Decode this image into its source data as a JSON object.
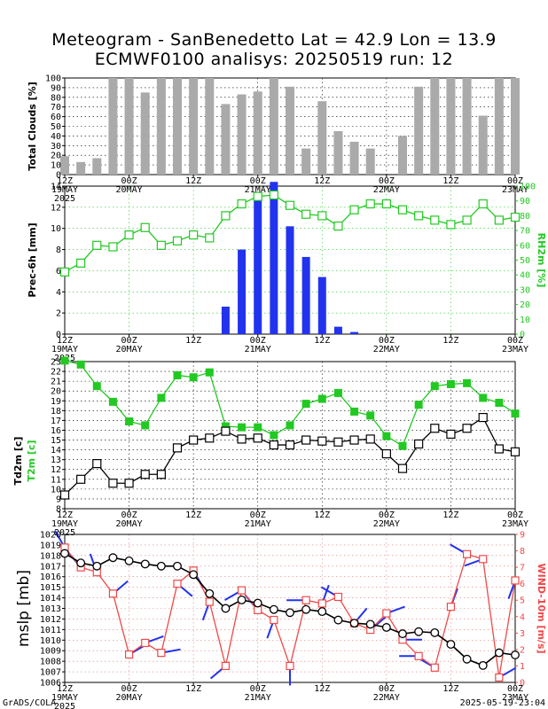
{
  "title": {
    "line1": "Meteogram - SanBenedetto Lat = 42.9 Lon = 13.9",
    "line2": "ECMWF0100 analisys: 20250519 run: 12"
  },
  "footer": {
    "left": "GrADS/COLA",
    "right": "2025-05-19-23:04"
  },
  "colors": {
    "green": "#22c922",
    "blue": "#2233ee",
    "red": "#f04848",
    "grey": "#aaaaaa",
    "black": "#000000"
  },
  "x_axis": {
    "ticks": [
      {
        "t": 0,
        "top": "12Z",
        "bottom": "19MAY",
        "extra": "2025"
      },
      {
        "t": 2,
        "top": "00Z",
        "bottom": "20MAY",
        "extra": ""
      },
      {
        "t": 4,
        "top": "12Z",
        "bottom": "",
        "extra": ""
      },
      {
        "t": 6,
        "top": "00Z",
        "bottom": "21MAY",
        "extra": ""
      },
      {
        "t": 8,
        "top": "12Z",
        "bottom": "",
        "extra": ""
      },
      {
        "t": 10,
        "top": "00Z",
        "bottom": "22MAY",
        "extra": ""
      },
      {
        "t": 12,
        "top": "12Z",
        "bottom": "",
        "extra": ""
      },
      {
        "t": 14,
        "top": "00Z",
        "bottom": "23MAY",
        "extra": ""
      }
    ]
  },
  "chart_data": [
    {
      "type": "bar",
      "ylabel": "Total Clouds [%]",
      "ylim": [
        0,
        100
      ],
      "yticks": [
        0,
        10,
        20,
        30,
        40,
        50,
        60,
        70,
        80,
        90,
        100
      ],
      "series": [
        {
          "name": "Total Clouds",
          "x": [
            0,
            0.5,
            1,
            1.5,
            2,
            2.5,
            3,
            3.5,
            4,
            4.5,
            5,
            5.5,
            6,
            6.5,
            7,
            7.5,
            8,
            8.5,
            9,
            9.5,
            10,
            10.5,
            11,
            11.5,
            12,
            12.5,
            13,
            13.5,
            14
          ],
          "values": [
            19,
            13,
            17,
            100,
            100,
            85,
            100,
            100,
            100,
            100,
            73,
            83,
            86,
            100,
            91,
            27,
            76,
            45,
            34,
            27,
            0,
            40,
            91,
            100,
            100,
            100,
            61,
            100,
            100
          ]
        }
      ]
    },
    {
      "type": "bar+line",
      "ylabel": "Prec-6h [mm]",
      "y2label": "RH2m [%]",
      "ylim": [
        0,
        14
      ],
      "y2lim": [
        0,
        100
      ],
      "yticks": [
        0,
        2,
        4,
        6,
        8,
        10,
        12,
        14
      ],
      "y2ticks": [
        0,
        10,
        20,
        30,
        40,
        50,
        60,
        70,
        80,
        90,
        100
      ],
      "series": [
        {
          "name": "Prec-6h",
          "x": [
            0,
            0.5,
            1,
            1.5,
            2,
            2.5,
            3,
            3.5,
            4,
            4.5,
            5,
            5.5,
            6,
            6.5,
            7,
            7.5,
            8,
            8.5,
            9,
            9.5,
            10,
            10.5,
            11,
            11.5,
            12,
            12.5,
            13,
            13.5,
            14
          ],
          "values": [
            0,
            0,
            0,
            0,
            0,
            0,
            0,
            0,
            0,
            0,
            2.6,
            8,
            13,
            14.4,
            10.2,
            7.3,
            5.4,
            0.7,
            0.2,
            0,
            0,
            0,
            0,
            0,
            0,
            0,
            0,
            0,
            0
          ]
        },
        {
          "name": "RH2m",
          "x": [
            0,
            0.5,
            1,
            1.5,
            2,
            2.5,
            3,
            3.5,
            4,
            4.5,
            5,
            5.5,
            6,
            6.5,
            7,
            7.5,
            8,
            8.5,
            9,
            9.5,
            10,
            10.5,
            11,
            11.5,
            12,
            12.5,
            13,
            13.5,
            14
          ],
          "values": [
            42,
            48,
            60,
            59,
            67,
            72,
            60,
            63,
            67,
            65,
            80,
            88,
            93,
            94,
            87,
            81,
            80,
            73,
            84,
            88,
            88,
            84,
            80,
            77,
            74,
            77,
            88,
            77,
            79
          ]
        }
      ]
    },
    {
      "type": "line",
      "ylabel": "Td2m [c]",
      "ylabel2": "T2m [c]",
      "ylim": [
        8,
        23
      ],
      "yticks": [
        8,
        9,
        10,
        11,
        12,
        13,
        14,
        15,
        16,
        17,
        18,
        19,
        20,
        21,
        22,
        23
      ],
      "series": [
        {
          "name": "T2m",
          "x": [
            0,
            0.5,
            1,
            1.5,
            2,
            2.5,
            3,
            3.5,
            4,
            4.5,
            5,
            5.5,
            6,
            6.5,
            7,
            7.5,
            8,
            8.5,
            9,
            9.5,
            10,
            10.5,
            11,
            11.5,
            12,
            12.5,
            13,
            13.5,
            14
          ],
          "values": [
            23.1,
            22.7,
            20.5,
            18.9,
            16.9,
            16.5,
            19.3,
            21.6,
            21.4,
            21.9,
            16.4,
            16.3,
            16.3,
            15.5,
            16.5,
            18.7,
            19.2,
            19.8,
            17.9,
            17.5,
            15.4,
            14.4,
            18.6,
            20.5,
            20.7,
            20.8,
            19.3,
            18.8,
            17.7
          ]
        },
        {
          "name": "Td2m",
          "x": [
            0,
            0.5,
            1,
            1.5,
            2,
            2.5,
            3,
            3.5,
            4,
            4.5,
            5,
            5.5,
            6,
            6.5,
            7,
            7.5,
            8,
            8.5,
            9,
            9.5,
            10,
            10.5,
            11,
            11.5,
            12,
            12.5,
            13,
            13.5,
            14
          ],
          "values": [
            9.4,
            11,
            12.6,
            10.6,
            10.6,
            11.5,
            11.5,
            14.2,
            15,
            15.2,
            15.9,
            15.1,
            15.2,
            14.5,
            14.5,
            15,
            14.9,
            14.8,
            15,
            15.1,
            13.6,
            12.1,
            14.6,
            16.2,
            15.6,
            16.2,
            17.3,
            14.1,
            13.8
          ]
        }
      ]
    },
    {
      "type": "line",
      "ylabel": "mslp [mb]",
      "y2label": "WIND-10m [m/s]",
      "ylim": [
        1006,
        1020
      ],
      "y2lim": [
        0,
        9
      ],
      "yticks": [
        1006,
        1007,
        1008,
        1009,
        1010,
        1011,
        1012,
        1013,
        1014,
        1015,
        1016,
        1017,
        1018,
        1019,
        1020
      ],
      "y2ticks": [
        0,
        1,
        2,
        3,
        4,
        5,
        6,
        7,
        8,
        9
      ],
      "series": [
        {
          "name": "mslp",
          "x": [
            0,
            0.5,
            1,
            1.5,
            2,
            2.5,
            3,
            3.5,
            4,
            4.5,
            5,
            5.5,
            6,
            6.5,
            7,
            7.5,
            8,
            8.5,
            9,
            9.5,
            10,
            10.5,
            11,
            11.5,
            12,
            12.5,
            13,
            13.5,
            14
          ],
          "values": [
            1018.2,
            1017.3,
            1017,
            1017.8,
            1017.5,
            1017.2,
            1017,
            1017,
            1016.2,
            1014.4,
            1013,
            1013.8,
            1013.5,
            1012.9,
            1012.6,
            1012.9,
            1012.7,
            1011.9,
            1011.6,
            1011.5,
            1011.2,
            1010.6,
            1010.8,
            1010.7,
            1009.6,
            1008.2,
            1007.6,
            1008.8,
            1008.6
          ]
        },
        {
          "name": "WIND-10m",
          "x": [
            0,
            0.5,
            1,
            1.5,
            2,
            2.5,
            3,
            3.5,
            4,
            4.5,
            5,
            5.5,
            6,
            6.5,
            7,
            7.5,
            8,
            8.5,
            9,
            9.5,
            10,
            10.5,
            11,
            11.5,
            12,
            12.5,
            13,
            13.5,
            14
          ],
          "values": [
            8.2,
            7,
            6.7,
            5.4,
            1.7,
            2.4,
            1.8,
            6,
            6.8,
            4.9,
            1,
            5.6,
            4.4,
            3.8,
            1,
            5,
            4.8,
            5.2,
            3.6,
            3.2,
            4.2,
            2.6,
            1.6,
            0.9,
            4.6,
            7.8,
            7.5,
            0.3,
            6.2
          ]
        },
        {
          "name": "wind barbs",
          "x": [
            0,
            0.5,
            1,
            1.5,
            2,
            2.5,
            3,
            3.5,
            4,
            4.5,
            5,
            5.5,
            6,
            6.5,
            7,
            7.5,
            8,
            8.5,
            9,
            9.5,
            10,
            10.5,
            11,
            11.5,
            12,
            12.5,
            13,
            13.5,
            14
          ],
          "dir": [
            330,
            320,
            340,
            50,
            60,
            70,
            80,
            130,
            150,
            200,
            230,
            240,
            320,
            200,
            180,
            270,
            20,
            300,
            40,
            50,
            70,
            90,
            270,
            300,
            20,
            300,
            250,
            60,
            200
          ]
        }
      ]
    }
  ]
}
